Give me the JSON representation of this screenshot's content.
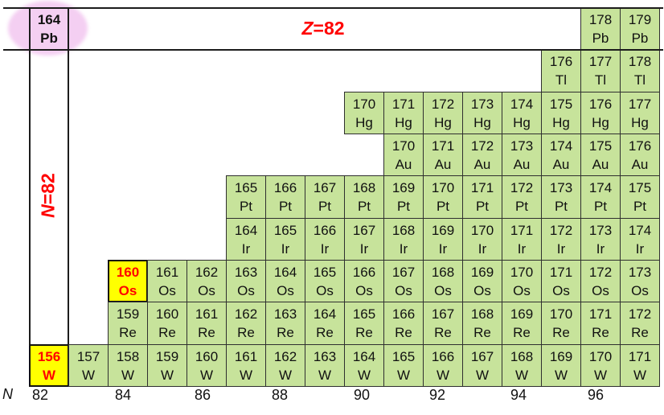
{
  "labels": {
    "z_line": {
      "variable": "Z",
      "rest": "=82"
    },
    "n_line": {
      "variable": "N",
      "rest": "=82"
    },
    "axis_variable": "N"
  },
  "axis": {
    "ticks": [
      "82",
      "84",
      "86",
      "88",
      "90",
      "92",
      "94",
      "96"
    ]
  },
  "colors": {
    "cell_green": "#c7e39b",
    "highlight_yellow": "#ffff00",
    "highlight_text_red": "#ff0000",
    "annotation_red": "#ff0000",
    "ellipse_pink": "#f4cff2",
    "grid_border": "#2f2f2f"
  },
  "chart_data": {
    "type": "table",
    "xlabel": "N",
    "x_ticks": [
      82,
      84,
      86,
      88,
      90,
      92,
      94,
      96
    ],
    "x_range": [
      82,
      97
    ],
    "annotations": [
      "Z=82",
      "N=82"
    ],
    "rows": [
      {
        "element": "Pb",
        "segments": [
          {
            "N_start": 82,
            "masses": [
              164
            ]
          },
          {
            "N_start": 96,
            "masses": [
              178,
              179
            ]
          }
        ]
      },
      {
        "element": "Tl",
        "segments": [
          {
            "N_start": 95,
            "masses": [
              176,
              177,
              178
            ]
          }
        ]
      },
      {
        "element": "Hg",
        "segments": [
          {
            "N_start": 90,
            "masses": [
              170,
              171,
              172,
              173,
              174,
              175,
              176,
              177
            ]
          }
        ]
      },
      {
        "element": "Au",
        "segments": [
          {
            "N_start": 91,
            "masses": [
              170,
              171,
              172,
              173,
              174,
              175,
              176
            ]
          }
        ]
      },
      {
        "element": "Pt",
        "segments": [
          {
            "N_start": 87,
            "masses": [
              165,
              166,
              167,
              168,
              169,
              170,
              171,
              172,
              173,
              174,
              175
            ]
          }
        ]
      },
      {
        "element": "Ir",
        "segments": [
          {
            "N_start": 87,
            "masses": [
              164,
              165,
              166,
              167,
              168,
              169,
              170,
              171,
              172,
              173,
              174
            ]
          }
        ]
      },
      {
        "element": "Os",
        "segments": [
          {
            "N_start": 84,
            "masses": [
              160,
              161,
              162,
              163,
              164,
              165,
              166,
              167,
              168,
              169,
              170,
              171,
              172,
              173
            ]
          }
        ]
      },
      {
        "element": "Re",
        "segments": [
          {
            "N_start": 84,
            "masses": [
              159,
              160,
              161,
              162,
              163,
              164,
              165,
              166,
              167,
              168,
              169,
              170,
              171,
              172
            ]
          }
        ]
      },
      {
        "element": "W",
        "segments": [
          {
            "N_start": 82,
            "masses": [
              156,
              157,
              158,
              159,
              160,
              161,
              162,
              163,
              164,
              165,
              166,
              167,
              168,
              169,
              170,
              171
            ]
          }
        ]
      }
    ],
    "highlights": {
      "164Pb": "ellipse",
      "160Os": "yellow",
      "156W": "yellow"
    }
  }
}
